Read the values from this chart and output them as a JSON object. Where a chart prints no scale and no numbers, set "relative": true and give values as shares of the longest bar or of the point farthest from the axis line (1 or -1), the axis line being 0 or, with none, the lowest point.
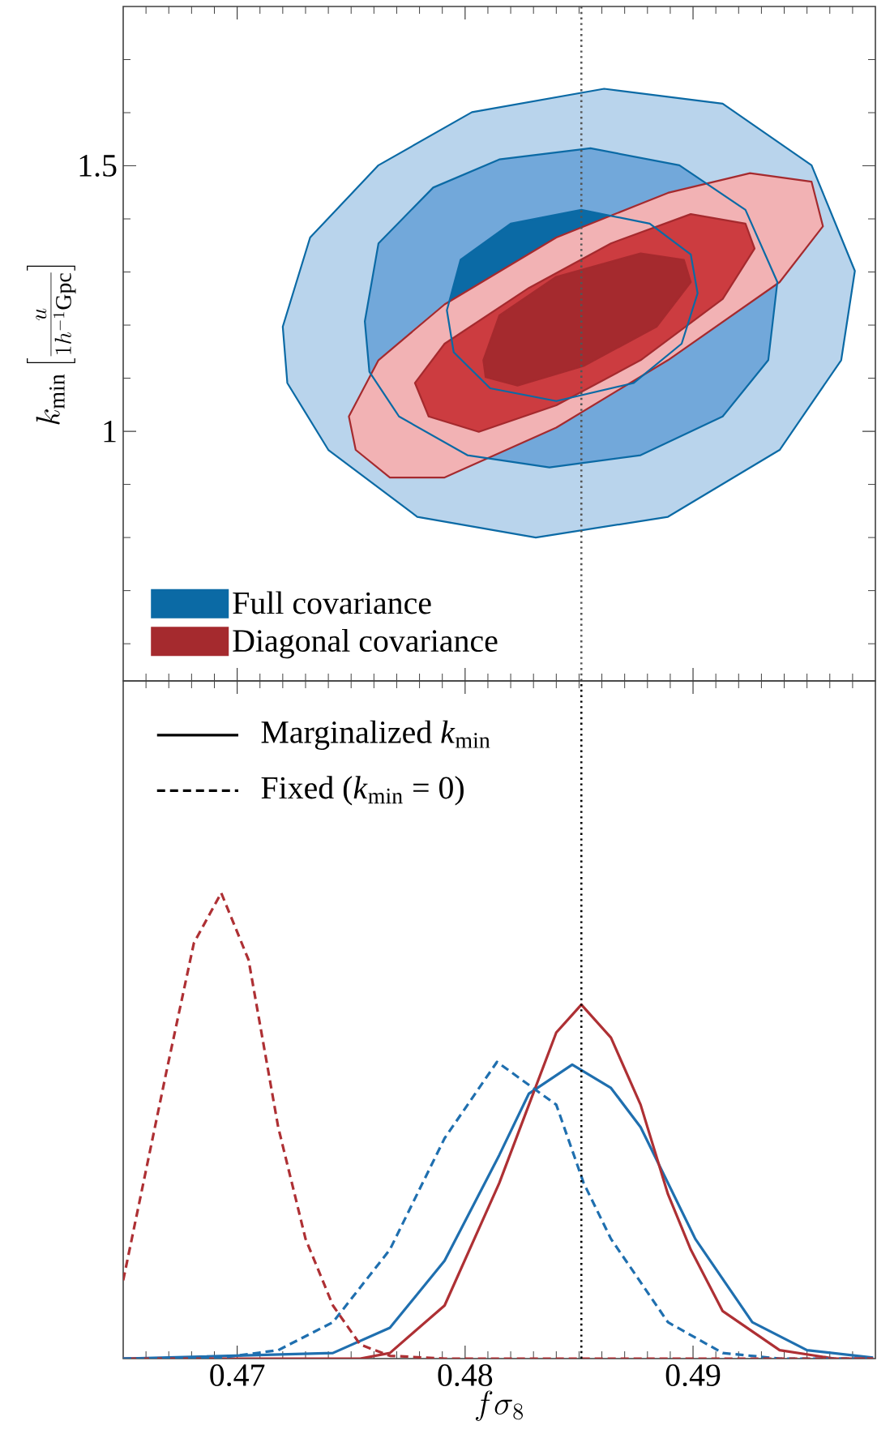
{
  "chart_data": [
    {
      "type": "area",
      "ylabel": "k_{\\mathrm{min}}\\left[\\frac{u}{1h^{-1}\\mathrm{Gpc}}\\right]",
      "xlim": [
        0.465,
        0.498
      ],
      "xticks": [
        {
          "value": 0.466,
          "label": null
        },
        {
          "value": 0.467,
          "label": null
        },
        {
          "value": 0.468,
          "label": null
        },
        {
          "value": 0.469,
          "label": null
        },
        0.47,
        {
          "value": 0.471,
          "label": null
        },
        {
          "value": 0.472,
          "label": null
        },
        {
          "value": 0.473,
          "label": null
        },
        {
          "value": 0.474,
          "label": null
        },
        {
          "value": 0.475,
          "label": null
        },
        {
          "value": 0.476,
          "label": null
        },
        {
          "value": 0.477,
          "label": null
        },
        {
          "value": 0.478,
          "label": null
        },
        {
          "value": 0.479,
          "label": null
        },
        0.48,
        {
          "value": 0.481,
          "label": null
        },
        {
          "value": 0.482,
          "label": null
        },
        {
          "value": 0.483,
          "label": null
        },
        {
          "value": 0.484,
          "label": null
        },
        {
          "value": 0.485,
          "label": null
        },
        {
          "value": 0.486,
          "label": null
        },
        {
          "value": 0.487,
          "label": null
        },
        {
          "value": 0.488,
          "label": null
        },
        {
          "value": 0.489,
          "label": null
        },
        0.49,
        {
          "value": 0.491,
          "label": null
        },
        {
          "value": 0.492,
          "label": null
        },
        {
          "value": 0.493,
          "label": null
        },
        {
          "value": 0.494,
          "label": null
        },
        {
          "value": 0.495,
          "label": null
        },
        {
          "value": 0.496,
          "label": null
        },
        {
          "value": 0.497,
          "label": null
        }
      ],
      "ylim": [
        0.53,
        1.8
      ],
      "yticks": [
        {
          "value": 0.6,
          "label": null
        },
        {
          "value": 0.7,
          "label": null
        },
        {
          "value": 0.8,
          "label": null
        },
        {
          "value": 0.9,
          "label": null
        },
        1,
        {
          "value": 1.1,
          "label": null
        },
        {
          "value": 1.2,
          "label": null
        },
        {
          "value": 1.3,
          "label": null
        },
        {
          "value": 1.4,
          "label": null
        },
        1.5,
        {
          "value": 1.6,
          "label": null
        },
        {
          "value": 1.7,
          "label": null
        }
      ],
      "tick_labels": "y",
      "legend": "bottom left",
      "ref_lines": [
        {
          "axis": "x",
          "value": 0.4851,
          "color": "#555555",
          "line_style": "dotted"
        }
      ],
      "series": [
        {
          "color": "#b9d4ec",
          "x": [
            0.472,
            0.4732,
            0.4762,
            0.4803,
            0.4861,
            0.4913,
            0.4952,
            0.4971,
            0.4965,
            0.4938,
            0.4889,
            0.4831,
            0.4779,
            0.474,
            0.4722
          ],
          "values": [
            1.197,
            1.365,
            1.501,
            1.601,
            1.645,
            1.617,
            1.501,
            1.302,
            1.134,
            0.965,
            0.839,
            0.8,
            0.839,
            0.965,
            1.091
          ]
        },
        {
          "color": "#72a8da",
          "x": [
            0.4756,
            0.4762,
            0.4786,
            0.4815,
            0.4855,
            0.4894,
            0.4923,
            0.4937,
            0.4933,
            0.4913,
            0.4877,
            0.4837,
            0.4801,
            0.4771,
            0.4758
          ],
          "values": [
            1.207,
            1.354,
            1.459,
            1.512,
            1.533,
            1.501,
            1.417,
            1.281,
            1.134,
            1.028,
            0.955,
            0.932,
            0.955,
            1.028,
            1.112
          ]
        },
        {
          "name": "Full covariance",
          "color": "#0b6aa5",
          "x": [
            0.4792,
            0.4798,
            0.482,
            0.4851,
            0.4881,
            0.4899,
            0.4902,
            0.4895,
            0.4874,
            0.484,
            0.4811,
            0.4795
          ],
          "values": [
            1.228,
            1.323,
            1.391,
            1.417,
            1.391,
            1.333,
            1.26,
            1.165,
            1.091,
            1.057,
            1.081,
            1.149
          ]
        },
        {
          "color": "#f2b2b4",
          "x": [
            0.4749,
            0.4762,
            0.4791,
            0.484,
            0.4889,
            0.4925,
            0.4952,
            0.4957,
            0.4938,
            0.4889,
            0.484,
            0.4791,
            0.4767,
            0.4752
          ],
          "values": [
            1.028,
            1.134,
            1.239,
            1.365,
            1.449,
            1.486,
            1.47,
            1.386,
            1.281,
            1.134,
            1.007,
            0.913,
            0.913,
            0.965
          ]
        },
        {
          "color": "#cc3c40",
          "x": [
            0.4778,
            0.4791,
            0.4828,
            0.4864,
            0.4899,
            0.4923,
            0.4927,
            0.4913,
            0.4877,
            0.484,
            0.4806,
            0.4784
          ],
          "values": [
            1.091,
            1.165,
            1.27,
            1.354,
            1.409,
            1.391,
            1.344,
            1.249,
            1.134,
            1.049,
            0.999,
            1.028
          ]
        },
        {
          "name": "Diagonal covariance",
          "color": "#a52a2e",
          "x": [
            0.4808,
            0.4815,
            0.484,
            0.4877,
            0.4896,
            0.4899,
            0.4884,
            0.4852,
            0.4823,
            0.4809
          ],
          "values": [
            1.134,
            1.218,
            1.291,
            1.335,
            1.323,
            1.281,
            1.197,
            1.123,
            1.086,
            1.102
          ]
        }
      ]
    },
    {
      "type": "line",
      "relative": true,
      "xlabel": "f\\sigma_8",
      "legend": "top left",
      "annotations": [
        "Marginalized *k*$_{min}$",
        "Fixed (*k*$_{min}$ = 0)"
      ],
      "xlim": [
        0.465,
        0.498
      ],
      "xticks": [
        {
          "value": 0.466,
          "label": null
        },
        {
          "value": 0.467,
          "label": null
        },
        {
          "value": 0.468,
          "label": null
        },
        {
          "value": 0.469,
          "label": null
        },
        0.47,
        {
          "value": 0.471,
          "label": null
        },
        {
          "value": 0.472,
          "label": null
        },
        {
          "value": 0.473,
          "label": null
        },
        {
          "value": 0.474,
          "label": null
        },
        {
          "value": 0.475,
          "label": null
        },
        {
          "value": 0.476,
          "label": null
        },
        {
          "value": 0.477,
          "label": null
        },
        {
          "value": 0.478,
          "label": null
        },
        {
          "value": 0.479,
          "label": null
        },
        0.48,
        {
          "value": 0.481,
          "label": null
        },
        {
          "value": 0.482,
          "label": null
        },
        {
          "value": 0.483,
          "label": null
        },
        {
          "value": 0.484,
          "label": null
        },
        {
          "value": 0.485,
          "label": null
        },
        {
          "value": 0.486,
          "label": null
        },
        {
          "value": 0.487,
          "label": null
        },
        {
          "value": 0.488,
          "label": null
        },
        {
          "value": 0.489,
          "label": null
        },
        0.49,
        {
          "value": 0.491,
          "label": null
        },
        {
          "value": 0.492,
          "label": null
        },
        {
          "value": 0.493,
          "label": null
        },
        {
          "value": 0.494,
          "label": null
        },
        {
          "value": 0.495,
          "label": null
        },
        {
          "value": 0.496,
          "label": null
        },
        {
          "value": 0.497,
          "label": null
        }
      ],
      "ref_lines": [
        {
          "axis": "x",
          "value": 0.4851,
          "color": "#000000",
          "line_style": "dotted"
        }
      ],
      "series": [
        {
          "color": "#1f6faf",
          "line_style": "solid",
          "x": [
            0.465,
            0.4742,
            0.4767,
            0.4791,
            0.4815,
            0.4828,
            0.4847,
            0.4864,
            0.4877,
            0.4901,
            0.4926,
            0.495,
            0.4979
          ],
          "values": [
            0,
            0.012,
            0.066,
            0.21,
            0.437,
            0.569,
            0.631,
            0.581,
            0.497,
            0.257,
            0.078,
            0.018,
            0.002
          ]
        },
        {
          "color": "#ae3034",
          "line_style": "solid",
          "x": [
            0.465,
            0.4754,
            0.4767,
            0.4791,
            0.4815,
            0.4828,
            0.484,
            0.4851,
            0.4864,
            0.4877,
            0.4889,
            0.4899,
            0.4913,
            0.4938,
            0.4962,
            0.4979
          ],
          "values": [
            0,
            0,
            0.012,
            0.114,
            0.377,
            0.545,
            0.7,
            0.76,
            0.689,
            0.545,
            0.353,
            0.234,
            0.102,
            0.018,
            0,
            0
          ]
        },
        {
          "color": "#1f6faf",
          "line_style": "dashed",
          "x": [
            0.465,
            0.4693,
            0.4718,
            0.4742,
            0.4767,
            0.4791,
            0.4814,
            0.484,
            0.4852,
            0.4864,
            0.4889,
            0.4913,
            0.4938,
            0.4979
          ],
          "values": [
            0,
            0.002,
            0.018,
            0.078,
            0.234,
            0.473,
            0.637,
            0.545,
            0.377,
            0.257,
            0.078,
            0.012,
            0,
            0
          ]
        },
        {
          "color": "#ae3034",
          "line_style": "dashed",
          "x": [
            0.465,
            0.4669,
            0.4681,
            0.4693,
            0.4705,
            0.4718,
            0.473,
            0.4742,
            0.4754,
            0.4767,
            0.4791,
            0.4979
          ],
          "values": [
            0.168,
            0.617,
            0.892,
            1,
            0.856,
            0.497,
            0.257,
            0.114,
            0.03,
            0.006,
            0,
            0
          ]
        }
      ]
    }
  ]
}
